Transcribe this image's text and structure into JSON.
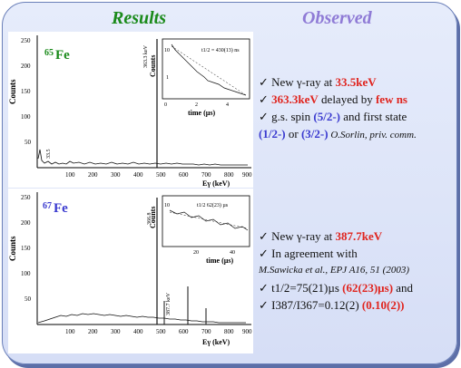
{
  "header": {
    "results": "Results",
    "observed": "Observed"
  },
  "spectrum1": {
    "isotope_mass": "65",
    "isotope_symbol": "Fe",
    "ylabel": "Counts",
    "y_ticks": [
      "250",
      "200",
      "150",
      "100",
      "50"
    ],
    "x_ticks": [
      "100",
      "200",
      "300",
      "400",
      "500",
      "600",
      "700",
      "800",
      "900"
    ],
    "peak_label": "363.3 keV",
    "small_peak_label": "33.5",
    "inset_ylabel": "Counts",
    "inset_xlabel": "time (µs)",
    "inset_annotation": "t1/2 = 430(13) ns",
    "inset_y_ticks": [
      "10",
      "1"
    ],
    "inset_x_ticks": [
      "0",
      "2",
      "4"
    ],
    "xlabel": "Eγ (keV)"
  },
  "spectrum2": {
    "isotope_mass": "67",
    "isotope_symbol": "Fe",
    "ylabel": "Counts",
    "y_ticks": [
      "250",
      "200",
      "150",
      "100",
      "50"
    ],
    "x_ticks": [
      "100",
      "200",
      "300",
      "400",
      "500",
      "600",
      "700",
      "800",
      "900"
    ],
    "peak_label": "366.8",
    "side_peak_label": "387.7 keV",
    "inset_ylabel": "Counts",
    "inset_xlabel": "time (µs)",
    "inset_annotation": "t1/2   62(23) µs",
    "inset_y_ticks": [
      "10"
    ],
    "inset_x_ticks": [
      "20",
      "40"
    ],
    "xlabel": "Eγ (keV)"
  },
  "observed1": {
    "line1_prefix": "✓ New γ-ray at ",
    "line1_value": "33.5keV",
    "line2_value": "363.3keV",
    "line2_mid": " delayed by ",
    "line2_tail": "few ns",
    "line3_prefix": "✓ g.s. spin ",
    "line3_spin": "(5/2-)",
    "line3_tail": " and first state",
    "line4_spin1": "(1/2-)",
    "line4_mid": " or ",
    "line4_spin2": "(3/2-)",
    "line4_ref": " O.Sorlin, priv. comm."
  },
  "observed2": {
    "line1_prefix": "✓ New γ-ray at ",
    "line1_value": "387.7keV",
    "line2": "✓ In agreement with",
    "line3_ref": "M.Sawicka et al., EPJ A16, 51 (2003)",
    "line4_prefix": "✓ t1/2=75(21)µs ",
    "line4_value": "(62(23)µs)",
    "line4_tail": " and",
    "line5_prefix": "✓ I387/I367=0.12(2) ",
    "line5_value": "(0.10(2))"
  },
  "colors": {
    "results": "#1a8a1a",
    "observed": "#8f7bd6",
    "highlight_red": "#e0241e",
    "highlight_blue": "#3a3acf",
    "fe65": "#1a8a1a",
    "fe67": "#3a3acf"
  }
}
